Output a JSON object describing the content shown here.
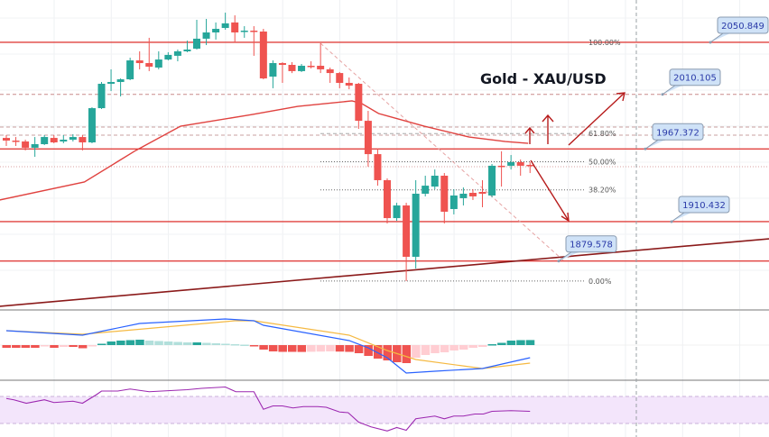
{
  "chart_data": {
    "type": "candlestick",
    "title": "Gold - XAU/USD",
    "colors": {
      "up": "#26a69a",
      "down": "#ef5350",
      "level": "#e0423f",
      "trendline": "#8b1a1a",
      "ma": "#e0423f",
      "macd": "#2962ff",
      "signal": "#f5b942",
      "rsi": "#9c27b0",
      "callout_bg": "#cfe2f7",
      "callout_text": "#2a3aa8"
    },
    "candles_ohlc": [
      [
        1976.0,
        1978.2,
        1969.7,
        1973.9
      ],
      [
        1973.9,
        1976.7,
        1969.7,
        1973.2
      ],
      [
        1973.2,
        1974.6,
        1966.2,
        1968.3
      ],
      [
        1968.3,
        1976.7,
        1961.2,
        1971.1
      ],
      [
        1971.1,
        1978.2,
        1970.4,
        1976.7
      ],
      [
        1976.0,
        1978.2,
        1971.8,
        1972.5
      ],
      [
        1973.2,
        1978.2,
        1971.8,
        1974.6
      ],
      [
        1974.6,
        1978.9,
        1973.2,
        1976.7
      ],
      [
        1976.7,
        1978.2,
        1966.2,
        1972.5
      ],
      [
        1972.5,
        2000.0,
        1971.8,
        1999.3
      ],
      [
        1999.3,
        2019.8,
        1998.6,
        2018.4
      ],
      [
        2018.4,
        2029.7,
        2012.7,
        2019.8
      ],
      [
        2019.8,
        2022.6,
        2008.5,
        2021.9
      ],
      [
        2021.9,
        2038.8,
        2021.2,
        2036.7
      ],
      [
        2036.7,
        2043.8,
        2029.7,
        2034.6
      ],
      [
        2034.6,
        2054.4,
        2028.3,
        2031.8
      ],
      [
        2031.1,
        2043.8,
        2029.7,
        2037.4
      ],
      [
        2037.4,
        2043.1,
        2036.7,
        2041.0
      ],
      [
        2040.3,
        2045.2,
        2036.0,
        2043.8
      ],
      [
        2043.8,
        2052.2,
        2043.1,
        2045.2
      ],
      [
        2045.9,
        2068.5,
        2045.2,
        2053.7
      ],
      [
        2053.7,
        2069.2,
        2048.7,
        2058.6
      ],
      [
        2058.6,
        2066.4,
        2053.0,
        2061.4
      ],
      [
        2062.1,
        2074.1,
        2060.7,
        2065.7
      ],
      [
        2066.4,
        2072.0,
        2050.8,
        2058.6
      ],
      [
        2059.3,
        2063.5,
        2054.4,
        2060.0
      ],
      [
        2060.0,
        2063.5,
        2040.3,
        2059.3
      ],
      [
        2059.3,
        2061.4,
        2021.9,
        2022.6
      ],
      [
        2024.0,
        2036.7,
        2014.9,
        2034.6
      ],
      [
        2034.6,
        2035.3,
        2019.1,
        2033.2
      ],
      [
        2033.2,
        2035.3,
        2026.8,
        2028.3
      ],
      [
        2028.3,
        2033.9,
        2027.6,
        2032.5
      ],
      [
        2032.5,
        2036.0,
        2030.4,
        2031.8
      ],
      [
        2032.5,
        2050.1,
        2026.8,
        2029.7
      ],
      [
        2029.7,
        2031.1,
        2019.1,
        2026.8
      ],
      [
        2026.8,
        2027.6,
        2014.9,
        2019.1
      ],
      [
        2019.1,
        2023.3,
        2014.1,
        2017.0
      ],
      [
        2018.4,
        2019.1,
        1983.1,
        1989.4
      ],
      [
        1989.4,
        1997.2,
        1953.5,
        1963.3
      ],
      [
        1963.3,
        1967.6,
        1938.6,
        1942.9
      ],
      [
        1942.9,
        1944.3,
        1909.0,
        1913.2
      ],
      [
        1913.2,
        1925.2,
        1911.1,
        1923.1
      ],
      [
        1923.1,
        1925.2,
        1863.9,
        1882.9
      ],
      [
        1882.9,
        1942.9,
        1873.7,
        1932.3
      ],
      [
        1932.3,
        1946.4,
        1930.2,
        1938.6
      ],
      [
        1937.9,
        1951.3,
        1935.8,
        1946.4
      ],
      [
        1946.4,
        1948.5,
        1909.0,
        1918.2
      ],
      [
        1920.3,
        1935.8,
        1916.1,
        1930.9
      ],
      [
        1928.8,
        1937.2,
        1923.1,
        1932.3
      ],
      [
        1933.0,
        1935.8,
        1927.4,
        1930.2
      ],
      [
        1933.7,
        1942.9,
        1921.7,
        1932.3
      ],
      [
        1930.9,
        1955.6,
        1929.5,
        1954.2
      ],
      [
        1954.2,
        1965.5,
        1937.9,
        1953.5
      ],
      [
        1954.2,
        1962.6,
        1951.3,
        1957.0
      ],
      [
        1957.0,
        1959.1,
        1946.4,
        1954.2
      ],
      [
        1954.9,
        1957.0,
        1948.5,
        1954.2
      ]
    ],
    "moving_average": [
      [
        -0.7,
        1927.4
      ],
      [
        8.2,
        1941.5
      ],
      [
        13.6,
        1966.2
      ],
      [
        18.3,
        1985.2
      ],
      [
        25.9,
        1994.4
      ],
      [
        30.6,
        2000.7
      ],
      [
        36.3,
        2005.0
      ],
      [
        37.3,
        2003.0
      ],
      [
        39.1,
        1995.1
      ],
      [
        43.9,
        1985.2
      ],
      [
        48.6,
        1976.7
      ],
      [
        52.4,
        1973.2
      ],
      [
        54.8,
        1971.8
      ]
    ],
    "trendline": [
      [
        -0.7,
        1844.1
      ],
      [
        80.1,
        1897.0
      ]
    ],
    "diagonal_dashed": [
      [
        33,
        2050.1
      ],
      [
        58.6,
        1879.4
      ]
    ],
    "levels": [
      {
        "price": 2050.849,
        "label": "2050.849",
        "style": "solid"
      },
      {
        "price": 2010.105,
        "label": "2010.105",
        "style": "dashed"
      },
      {
        "price": 1967.372,
        "label": "1967.372",
        "style": "solid"
      },
      {
        "price": 1910.432,
        "label": "1910.432",
        "style": "solid"
      },
      {
        "price": 1879.578,
        "label": "1879.578",
        "style": "solid"
      }
    ],
    "extra_dashed_levels": [
      1984.5,
      1978.2
    ],
    "dotted_level": 1953.5,
    "fibonacci": {
      "high": 2050.849,
      "low": 1863.9,
      "levels": [
        {
          "ratio": 1.0,
          "label": "100.00%"
        },
        {
          "ratio": 0.618,
          "label": "61.80%"
        },
        {
          "ratio": 0.5,
          "label": "50.00%"
        },
        {
          "ratio": 0.382,
          "label": "38.20%"
        },
        {
          "ratio": 0.0,
          "label": "0.00%"
        }
      ]
    },
    "macd_histogram": [
      -3,
      -3,
      -3,
      -3,
      -1,
      -3,
      -2,
      -2,
      -3.5,
      -0.5,
      1.5,
      4,
      5,
      5.5,
      6,
      5,
      4.5,
      4,
      3.5,
      3,
      3,
      2.5,
      2,
      1.5,
      1,
      0.5,
      -1,
      -5,
      -7,
      -7.5,
      -7.5,
      -7.6,
      -7.4,
      -7.2,
      -7.0,
      -7.2,
      -7.5,
      -9,
      -12,
      -15,
      -17,
      -19,
      -20,
      -14,
      -11,
      -9,
      -8,
      -6,
      -5,
      -3,
      -2,
      1,
      2.5,
      5,
      5.5,
      5.6
    ],
    "macd_line": [
      [
        0,
        16
      ],
      [
        8,
        11
      ],
      [
        14,
        24
      ],
      [
        23,
        29
      ],
      [
        26,
        27
      ],
      [
        27,
        22
      ],
      [
        36,
        5
      ],
      [
        38,
        -3
      ],
      [
        40,
        -14
      ],
      [
        42,
        -31
      ],
      [
        45,
        -29
      ],
      [
        50,
        -26
      ],
      [
        55,
        -14
      ]
    ],
    "signal_line": [
      [
        0,
        16
      ],
      [
        8,
        12
      ],
      [
        24,
        27
      ],
      [
        26,
        27
      ],
      [
        36,
        11
      ],
      [
        40,
        -6
      ],
      [
        43,
        -16
      ],
      [
        50,
        -26
      ],
      [
        55,
        -20
      ]
    ],
    "rsi": [
      [
        0,
        67
      ],
      [
        0.8,
        65
      ],
      [
        2.1,
        60
      ],
      [
        4,
        65
      ],
      [
        5,
        61
      ],
      [
        7,
        63
      ],
      [
        8,
        60
      ],
      [
        9.5,
        73
      ],
      [
        10,
        78
      ],
      [
        11.7,
        78
      ],
      [
        13,
        81
      ],
      [
        15,
        77
      ],
      [
        19,
        80
      ],
      [
        20.5,
        82
      ],
      [
        23,
        84
      ],
      [
        24.1,
        77
      ],
      [
        26,
        77
      ],
      [
        27,
        51
      ],
      [
        28,
        56
      ],
      [
        29,
        56
      ],
      [
        30.1,
        53
      ],
      [
        31.2,
        55
      ],
      [
        32.7,
        55
      ],
      [
        33.6,
        54
      ],
      [
        35,
        47
      ],
      [
        35.9,
        46
      ],
      [
        37,
        32
      ],
      [
        38.3,
        25
      ],
      [
        40,
        19
      ],
      [
        41,
        24
      ],
      [
        42,
        20
      ],
      [
        43,
        37
      ],
      [
        45,
        41
      ],
      [
        46,
        37
      ],
      [
        47,
        41
      ],
      [
        48,
        41
      ],
      [
        49.2,
        44
      ],
      [
        50.1,
        44
      ],
      [
        51,
        48
      ],
      [
        53,
        49
      ],
      [
        55,
        48
      ]
    ],
    "rsi_band": [
      70,
      30
    ]
  }
}
